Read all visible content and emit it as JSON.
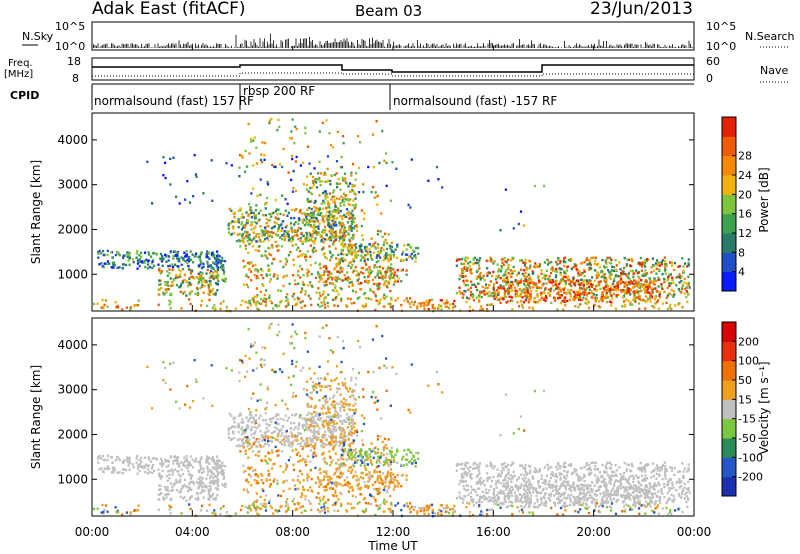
{
  "header": {
    "title": "Adak East (fitACF)",
    "beam": "Beam 03",
    "date": "23/Jun/2013"
  },
  "top_panels": {
    "nsky_label": "N.Sky",
    "nsearch_label": "N.Search",
    "freq_label": "Freq.",
    "freq_unit": "[MHz]",
    "nave_label": "Nave",
    "cpid_label": "CPID",
    "noise_ticks_left": [
      "10^5",
      "10^0"
    ],
    "noise_ticks_right": [
      "10^5",
      "10^0"
    ],
    "freq_ticks": [
      "18",
      "8"
    ],
    "nave_ticks": [
      "60",
      "0"
    ],
    "cpid_segments": [
      {
        "label": "normalsound (fast) 157 RF",
        "start_h": 0,
        "end_h": 6
      },
      {
        "label": "rbsp 200 RF",
        "start_h": 6,
        "end_h": 12
      },
      {
        "label": "normalsound (fast) -157 RF",
        "start_h": 12,
        "end_h": 24
      }
    ]
  },
  "chart_data": [
    {
      "type": "heatmap",
      "parameter": "power",
      "ylabel": "Slant Range [km]",
      "xlim": [
        0,
        24
      ],
      "ylim": [
        180,
        4600
      ],
      "yticks": [
        "1000",
        "2000",
        "3000",
        "4000"
      ],
      "colorbar_label": "Power [dB]",
      "colorbar_ticks": [
        "4",
        "8",
        "12",
        "16",
        "20",
        "24",
        "28"
      ],
      "colorbar_colors": [
        "#0a1cff",
        "#1f4fc8",
        "#2a7a6a",
        "#3ea04c",
        "#7cc43c",
        "#f0b400",
        "#f58a00",
        "#f05a00",
        "#e81e00"
      ]
    },
    {
      "type": "heatmap",
      "parameter": "velocity",
      "ylabel": "Slant Range [km]",
      "xlabel": "Time UT",
      "xlim": [
        0,
        24
      ],
      "ylim": [
        180,
        4600
      ],
      "xticks": [
        "00:00",
        "04:00",
        "08:00",
        "12:00",
        "16:00",
        "20:00",
        "00:00"
      ],
      "yticks": [
        "1000",
        "2000",
        "3000",
        "4000"
      ],
      "colorbar_label": "Velocity [m s⁻¹]",
      "colorbar_ticks": [
        "200",
        "100",
        "50",
        "15",
        "-15",
        "-50",
        "-100",
        "-200"
      ],
      "colorbar_colors": [
        "#1c2fae",
        "#2458c8",
        "#2f8a5a",
        "#7ac840",
        "#c0c0c0",
        "#f0a020",
        "#f07000",
        "#e83010",
        "#d80000"
      ]
    }
  ]
}
